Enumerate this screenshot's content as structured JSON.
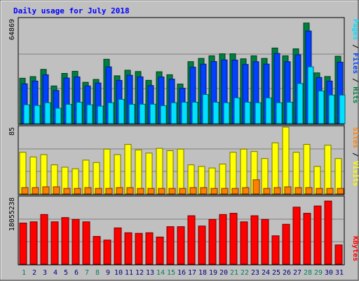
{
  "chart_data": [
    {
      "type": "bar",
      "title": "Daily usage for July 2018",
      "max_label": "64869",
      "ylim": [
        0,
        64869
      ],
      "categories": [
        "1",
        "2",
        "3",
        "4",
        "5",
        "6",
        "7",
        "8",
        "9",
        "10",
        "11",
        "12",
        "13",
        "14",
        "15",
        "16",
        "17",
        "18",
        "19",
        "20",
        "21",
        "22",
        "23",
        "24",
        "25",
        "26",
        "27",
        "28",
        "29",
        "30",
        "31"
      ],
      "weekend_days": [
        "1",
        "7",
        "8",
        "14",
        "15",
        "21",
        "22",
        "28",
        "29"
      ],
      "series": [
        {
          "name": "Hits",
          "color": "#008040",
          "values": [
            28140,
            29140,
            33620,
            23360,
            31130,
            32440,
            25620,
            27400,
            39910,
            29640,
            33100,
            32310,
            26840,
            32160,
            30310,
            24530,
            38430,
            40430,
            42030,
            43280,
            43280,
            40180,
            42030,
            40430,
            46860,
            42030,
            46360,
            62350,
            31460,
            29220,
            41770
          ]
        },
        {
          "name": "Files",
          "color": "#0040ff",
          "values": [
            24700,
            26400,
            30310,
            20560,
            28250,
            28980,
            23360,
            25200,
            35200,
            26800,
            30000,
            29000,
            23600,
            28900,
            27600,
            21950,
            35000,
            36900,
            38500,
            39500,
            39400,
            36700,
            38400,
            36900,
            43500,
            38400,
            42700,
            57400,
            28600,
            26400,
            38100
          ]
        },
        {
          "name": "Pages",
          "color": "#00e0ff",
          "values": [
            11700,
            11260,
            12950,
            9590,
            11990,
            13270,
            11700,
            10850,
            12950,
            15050,
            11990,
            12060,
            12060,
            11140,
            12950,
            13270,
            13270,
            18020,
            13270,
            12950,
            15990,
            13270,
            12950,
            15990,
            12950,
            13270,
            24840,
            35230,
            20250,
            17710,
            17710
          ]
        }
      ]
    },
    {
      "type": "bar",
      "max_label": "85",
      "ylim": [
        0,
        85
      ],
      "categories": [
        "1",
        "2",
        "3",
        "4",
        "5",
        "6",
        "7",
        "8",
        "9",
        "10",
        "11",
        "12",
        "13",
        "14",
        "15",
        "16",
        "17",
        "18",
        "19",
        "20",
        "21",
        "22",
        "23",
        "24",
        "25",
        "26",
        "27",
        "28",
        "29",
        "30",
        "31"
      ],
      "series": [
        {
          "name": "Visits",
          "color": "#ffff00",
          "values": [
            53,
            47,
            50,
            37,
            34,
            32,
            43,
            40,
            57,
            50,
            63,
            56,
            52,
            58,
            55,
            57,
            37,
            35,
            33,
            38,
            53,
            57,
            54,
            45,
            65,
            85,
            53,
            63,
            35,
            62,
            45
          ]
        },
        {
          "name": "Sites",
          "color": "#ff8000",
          "values": [
            8,
            8,
            9,
            9,
            7,
            7,
            8,
            7,
            7,
            8,
            8,
            7,
            7,
            7,
            7,
            7,
            8,
            8,
            7,
            7,
            7,
            8,
            18,
            7,
            8,
            9,
            8,
            8,
            7,
            7,
            7
          ]
        }
      ]
    },
    {
      "type": "bar",
      "max_label": "18055238",
      "ylim": [
        0,
        18055238
      ],
      "categories": [
        "1",
        "2",
        "3",
        "4",
        "5",
        "6",
        "7",
        "8",
        "9",
        "10",
        "11",
        "12",
        "13",
        "14",
        "15",
        "16",
        "17",
        "18",
        "19",
        "20",
        "21",
        "22",
        "23",
        "24",
        "25",
        "26",
        "27",
        "28",
        "29",
        "30",
        "31"
      ],
      "series": [
        {
          "name": "KBytes",
          "color": "#ff0000",
          "values": [
            11120000,
            11450000,
            13430000,
            11450000,
            12600000,
            12110000,
            11450000,
            7500000,
            6510000,
            9810000,
            8490000,
            8330000,
            8490000,
            7340000,
            10140000,
            10140000,
            13100000,
            10310000,
            12100000,
            13430000,
            13760000,
            11450000,
            13100000,
            12100000,
            7670000,
            10790000,
            15420000,
            13760000,
            15740000,
            17070000,
            5200000
          ]
        }
      ]
    }
  ]
}
